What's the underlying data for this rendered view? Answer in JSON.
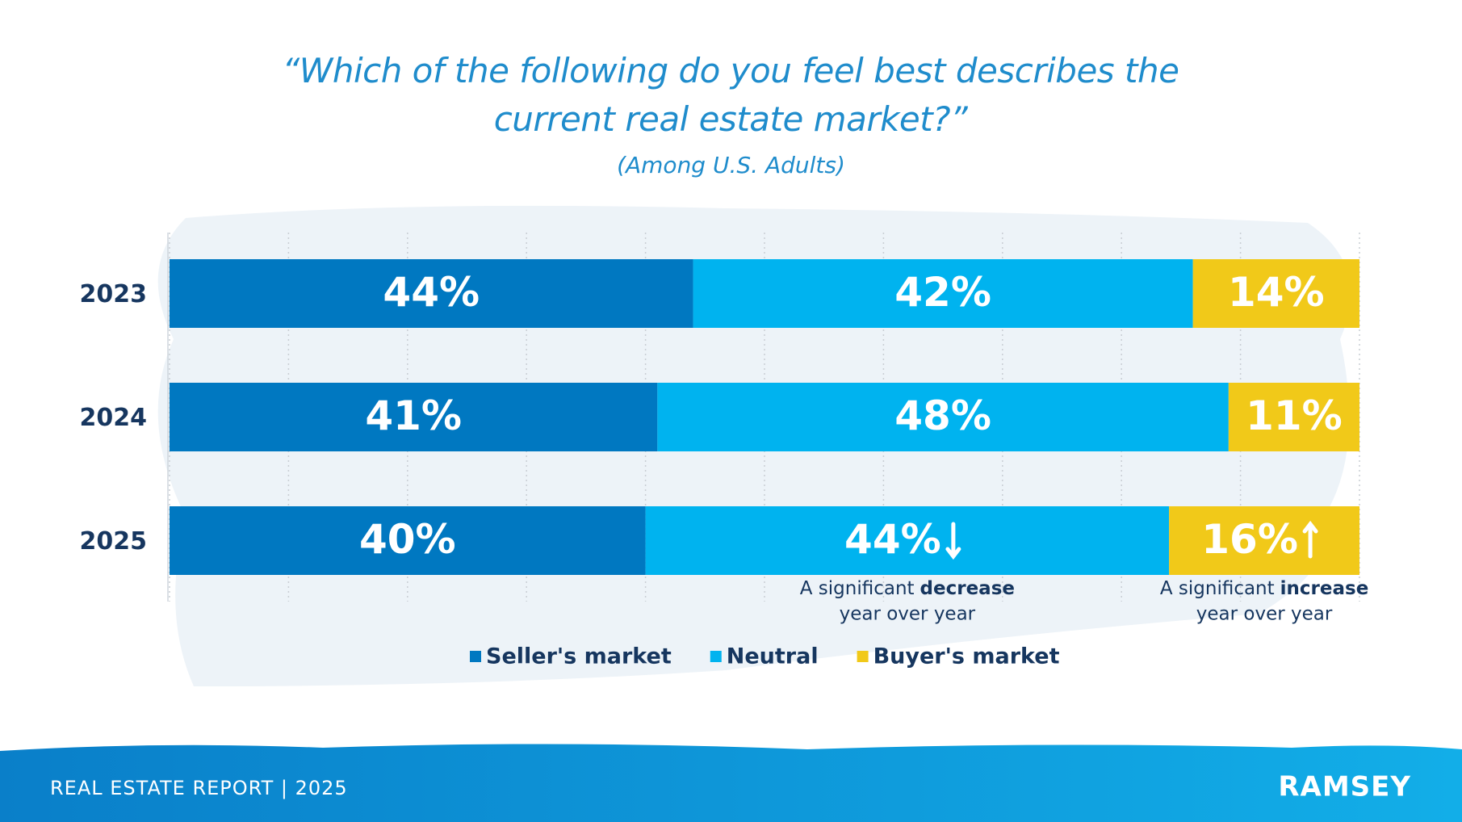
{
  "chart_data": {
    "type": "stacked-bar-horizontal",
    "title": "“Which of the following do you feel best describes the current real estate market?”",
    "subtitle": "(Among U.S. Adults)",
    "categories": [
      "2023",
      "2024",
      "2025"
    ],
    "series": [
      {
        "name": "Seller's market",
        "color": "#0078c1",
        "values": [
          44,
          41,
          40
        ],
        "value_labels": [
          "44%",
          "41%",
          "40%"
        ]
      },
      {
        "name": "Neutral",
        "color": "#00b3ef",
        "values": [
          42,
          48,
          44
        ],
        "value_labels": [
          "42%",
          "48%",
          "44%"
        ]
      },
      {
        "name": "Buyer's market",
        "color": "#f1c919",
        "values": [
          14,
          11,
          16
        ],
        "value_labels": [
          "14%",
          "11%",
          "16%"
        ]
      }
    ],
    "xlim": [
      0,
      100
    ],
    "xticks": [
      0,
      10,
      20,
      30,
      40,
      50,
      60,
      70,
      80,
      90,
      100
    ],
    "grid": true,
    "legend": "bottom",
    "annotations": [
      {
        "text": "A significant",
        "bold": "decrease",
        "line2": "year over year"
      },
      {
        "text": "A significant",
        "bold": "increase",
        "line2": "year over year"
      }
    ]
  },
  "footer": {
    "report": "REAL ESTATE REPORT | 2025",
    "brand": "RAMSEY"
  }
}
